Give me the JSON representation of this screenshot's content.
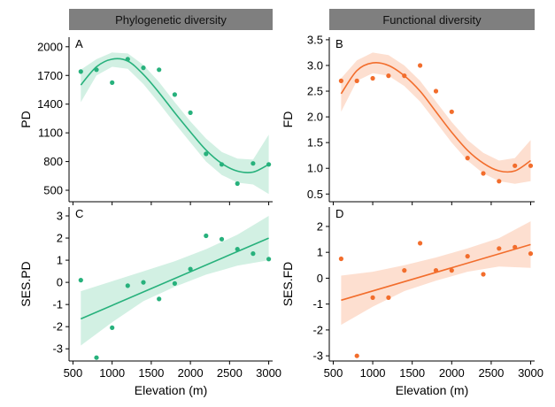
{
  "chart_data": [
    {
      "panel": "A",
      "type": "scatter",
      "strip": "Phylogenetic diversity",
      "ylabel": "PD",
      "xlabel": "",
      "color": "#27b17c",
      "band_color": "#cdeee0",
      "xlim": [
        450,
        3050
      ],
      "ylim": [
        380,
        2100
      ],
      "yticks": [
        500,
        800,
        1100,
        1400,
        1700,
        2000
      ],
      "xticks": [
        500,
        1000,
        1500,
        2000,
        2500,
        3000
      ],
      "show_xtick_labels": false,
      "points": [
        [
          600,
          1740
        ],
        [
          800,
          1760
        ],
        [
          1000,
          1625
        ],
        [
          1200,
          1870
        ],
        [
          1400,
          1780
        ],
        [
          1600,
          1760
        ],
        [
          1800,
          1500
        ],
        [
          2000,
          1310
        ],
        [
          2200,
          880
        ],
        [
          2400,
          770
        ],
        [
          2600,
          570
        ],
        [
          2800,
          780
        ],
        [
          3000,
          770
        ]
      ],
      "fit": [
        [
          600,
          1600
        ],
        [
          800,
          1790
        ],
        [
          1000,
          1870
        ],
        [
          1200,
          1850
        ],
        [
          1400,
          1710
        ],
        [
          1600,
          1520
        ],
        [
          1800,
          1310
        ],
        [
          2000,
          1110
        ],
        [
          2200,
          920
        ],
        [
          2400,
          780
        ],
        [
          2600,
          700
        ],
        [
          2800,
          690
        ],
        [
          3000,
          770
        ]
      ],
      "band_upper": [
        [
          600,
          1760
        ],
        [
          800,
          1870
        ],
        [
          1000,
          1940
        ],
        [
          1200,
          1930
        ],
        [
          1400,
          1810
        ],
        [
          1600,
          1630
        ],
        [
          1800,
          1420
        ],
        [
          2000,
          1220
        ],
        [
          2200,
          1040
        ],
        [
          2400,
          900
        ],
        [
          2600,
          830
        ],
        [
          2800,
          820
        ],
        [
          3000,
          1080
        ]
      ],
      "band_lower": [
        [
          600,
          1420
        ],
        [
          800,
          1700
        ],
        [
          1000,
          1790
        ],
        [
          1200,
          1770
        ],
        [
          1400,
          1610
        ],
        [
          1600,
          1410
        ],
        [
          1800,
          1200
        ],
        [
          2000,
          1000
        ],
        [
          2200,
          800
        ],
        [
          2400,
          660
        ],
        [
          2600,
          580
        ],
        [
          2800,
          560
        ],
        [
          3000,
          460
        ]
      ]
    },
    {
      "panel": "B",
      "type": "scatter",
      "strip": "Functional diversity",
      "ylabel": "FD",
      "xlabel": "",
      "color": "#f26d2c",
      "band_color": "#fddccb",
      "xlim": [
        450,
        3050
      ],
      "ylim": [
        0.35,
        3.55
      ],
      "yticks": [
        0.5,
        1.0,
        1.5,
        2.0,
        2.5,
        3.0,
        3.5
      ],
      "xticks": [
        500,
        1000,
        1500,
        2000,
        2500,
        3000
      ],
      "show_xtick_labels": false,
      "points": [
        [
          600,
          2.7
        ],
        [
          800,
          2.7
        ],
        [
          1000,
          2.75
        ],
        [
          1200,
          2.8
        ],
        [
          1400,
          2.8
        ],
        [
          1600,
          3.0
        ],
        [
          1800,
          2.5
        ],
        [
          2000,
          2.1
        ],
        [
          2200,
          1.2
        ],
        [
          2400,
          0.9
        ],
        [
          2600,
          0.75
        ],
        [
          2800,
          1.05
        ],
        [
          3000,
          1.05
        ]
      ],
      "fit": [
        [
          600,
          2.45
        ],
        [
          800,
          2.9
        ],
        [
          1000,
          3.05
        ],
        [
          1200,
          3.0
        ],
        [
          1400,
          2.8
        ],
        [
          1600,
          2.5
        ],
        [
          1800,
          2.1
        ],
        [
          2000,
          1.7
        ],
        [
          2200,
          1.35
        ],
        [
          2400,
          1.1
        ],
        [
          2600,
          0.95
        ],
        [
          2800,
          0.95
        ],
        [
          3000,
          1.15
        ]
      ],
      "band_upper": [
        [
          600,
          2.75
        ],
        [
          800,
          3.1
        ],
        [
          1000,
          3.25
        ],
        [
          1200,
          3.2
        ],
        [
          1400,
          3.0
        ],
        [
          1600,
          2.7
        ],
        [
          1800,
          2.3
        ],
        [
          2000,
          1.9
        ],
        [
          2200,
          1.55
        ],
        [
          2400,
          1.3
        ],
        [
          2600,
          1.15
        ],
        [
          2800,
          1.2
        ],
        [
          3000,
          1.55
        ]
      ],
      "band_lower": [
        [
          600,
          2.1
        ],
        [
          800,
          2.7
        ],
        [
          1000,
          2.85
        ],
        [
          1200,
          2.8
        ],
        [
          1400,
          2.6
        ],
        [
          1600,
          2.3
        ],
        [
          1800,
          1.9
        ],
        [
          2000,
          1.5
        ],
        [
          2200,
          1.15
        ],
        [
          2400,
          0.9
        ],
        [
          2600,
          0.75
        ],
        [
          2800,
          0.7
        ],
        [
          3000,
          0.75
        ]
      ]
    },
    {
      "panel": "C",
      "type": "scatter",
      "ylabel": "SES.PD",
      "xlabel": "Elevation (m)",
      "color": "#27b17c",
      "band_color": "#cdeee0",
      "xlim": [
        450,
        3050
      ],
      "ylim": [
        -3.55,
        3.4
      ],
      "yticks": [
        -3,
        -2,
        -1,
        0,
        1,
        2,
        3
      ],
      "xticks": [
        500,
        1000,
        1500,
        2000,
        2500,
        3000
      ],
      "show_xtick_labels": true,
      "points": [
        [
          600,
          0.1
        ],
        [
          800,
          -3.4
        ],
        [
          1000,
          -2.05
        ],
        [
          1200,
          -0.15
        ],
        [
          1400,
          0.0
        ],
        [
          1600,
          -0.75
        ],
        [
          1800,
          -0.05
        ],
        [
          2000,
          0.6
        ],
        [
          2200,
          2.1
        ],
        [
          2400,
          1.95
        ],
        [
          2600,
          1.5
        ],
        [
          2800,
          1.3
        ],
        [
          3000,
          1.05
        ]
      ],
      "fit": [
        [
          600,
          -1.65
        ],
        [
          3000,
          2.0
        ]
      ],
      "band_upper": [
        [
          600,
          -0.4
        ],
        [
          1000,
          0.05
        ],
        [
          1400,
          0.5
        ],
        [
          1800,
          0.95
        ],
        [
          2200,
          1.5
        ],
        [
          2600,
          2.15
        ],
        [
          3000,
          3.0
        ]
      ],
      "band_lower": [
        [
          600,
          -2.85
        ],
        [
          1000,
          -1.8
        ],
        [
          1400,
          -0.85
        ],
        [
          1800,
          -0.2
        ],
        [
          2200,
          0.35
        ],
        [
          2600,
          0.75
        ],
        [
          3000,
          1.0
        ]
      ]
    },
    {
      "panel": "D",
      "type": "scatter",
      "ylabel": "SES.FD",
      "xlabel": "Elevation (m)",
      "color": "#f26d2c",
      "band_color": "#fddccb",
      "xlim": [
        450,
        3050
      ],
      "ylim": [
        -3.2,
        2.75
      ],
      "yticks": [
        -3,
        -2,
        -1,
        0,
        1,
        2
      ],
      "xticks": [
        500,
        1000,
        1500,
        2000,
        2500,
        3000
      ],
      "show_xtick_labels": true,
      "points": [
        [
          600,
          0.75
        ],
        [
          800,
          -3.0
        ],
        [
          1000,
          -0.75
        ],
        [
          1200,
          -0.75
        ],
        [
          1400,
          0.3
        ],
        [
          1600,
          1.35
        ],
        [
          1800,
          0.3
        ],
        [
          2000,
          0.3
        ],
        [
          2200,
          0.85
        ],
        [
          2400,
          0.15
        ],
        [
          2600,
          1.15
        ],
        [
          2800,
          1.2
        ],
        [
          3000,
          0.95
        ]
      ],
      "fit": [
        [
          600,
          -0.85
        ],
        [
          3000,
          1.3
        ]
      ],
      "band_upper": [
        [
          600,
          0.1
        ],
        [
          1000,
          0.25
        ],
        [
          1400,
          0.5
        ],
        [
          1800,
          0.8
        ],
        [
          2200,
          1.15
        ],
        [
          2600,
          1.55
        ],
        [
          3000,
          2.2
        ]
      ],
      "band_lower": [
        [
          600,
          -1.8
        ],
        [
          1000,
          -1.1
        ],
        [
          1400,
          -0.5
        ],
        [
          1800,
          -0.1
        ],
        [
          2200,
          0.25
        ],
        [
          2600,
          0.45
        ],
        [
          3000,
          0.4
        ]
      ]
    }
  ]
}
